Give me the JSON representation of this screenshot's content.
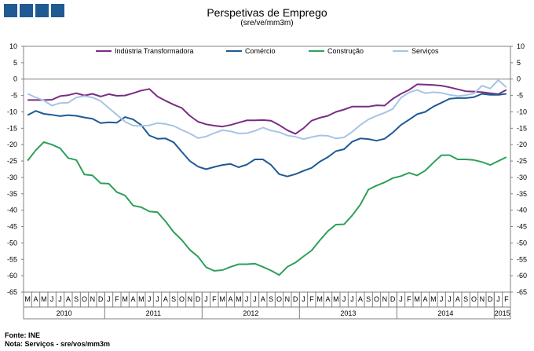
{
  "header": {
    "title": "Perspetivas de Emprego",
    "subtitle": "(sre/ve/mm3m)"
  },
  "footer": {
    "source": "Fonte: INE",
    "note": "Nota: Serviços - sre/vos/mm3m"
  },
  "chart_data": {
    "type": "line",
    "title": "Perspetivas de Emprego",
    "subtitle": "(sre/ve/mm3m)",
    "ylim": [
      -65,
      10
    ],
    "y_ticks": [
      10,
      5,
      0,
      -5,
      -10,
      -15,
      -20,
      -25,
      -30,
      -35,
      -40,
      -45,
      -50,
      -55,
      -60,
      -65
    ],
    "grid": false,
    "legend_position": "top",
    "month_labels": [
      "M",
      "A",
      "M",
      "J",
      "J",
      "A",
      "S",
      "O",
      "N",
      "D",
      "J",
      "F",
      "M",
      "A",
      "M",
      "J",
      "J",
      "A",
      "S",
      "O",
      "N",
      "D",
      "J",
      "F",
      "M",
      "A",
      "M",
      "J",
      "J",
      "A",
      "S",
      "O",
      "N",
      "D",
      "J",
      "F",
      "M",
      "A",
      "M",
      "J",
      "J",
      "A",
      "S",
      "O",
      "N",
      "D",
      "J",
      "F",
      "M",
      "A",
      "M",
      "J",
      "J",
      "A",
      "S",
      "O",
      "N",
      "D",
      "J",
      "F"
    ],
    "years": [
      {
        "label": "2010",
        "start": 0,
        "end": 10
      },
      {
        "label": "2011",
        "start": 10,
        "end": 22
      },
      {
        "label": "2012",
        "start": 22,
        "end": 34
      },
      {
        "label": "2013",
        "start": 34,
        "end": 46
      },
      {
        "label": "2014",
        "start": 46,
        "end": 58
      },
      {
        "label": "2015",
        "start": 58,
        "end": 60
      }
    ],
    "series": [
      {
        "name": "Indústria Transformadora",
        "color": "#7b2c83",
        "values": [
          -6.4,
          -6.4,
          -6.4,
          -6.3,
          -5.2,
          -4.9,
          -4.3,
          -5.0,
          -4.5,
          -5.3,
          -4.6,
          -5.1,
          -5.0,
          -4.3,
          -3.5,
          -3.0,
          -5.3,
          -6.6,
          -7.8,
          -8.8,
          -11.2,
          -13.0,
          -13.8,
          -14.2,
          -14.5,
          -14.0,
          -13.3,
          -12.6,
          -12.6,
          -12.5,
          -12.7,
          -14.0,
          -15.6,
          -16.7,
          -15.0,
          -12.7,
          -11.8,
          -11.2,
          -10.0,
          -9.3,
          -8.4,
          -8.4,
          -8.4,
          -8.0,
          -8.1,
          -6.0,
          -4.5,
          -3.3,
          -1.6,
          -1.7,
          -1.8,
          -2.0,
          -2.5,
          -3.1,
          -3.7,
          -3.8,
          -4.0,
          -4.3,
          -4.6,
          -3.3
        ]
      },
      {
        "name": "Comércio",
        "color": "#1f5a93",
        "values": [
          -11.0,
          -9.7,
          -10.6,
          -10.9,
          -11.3,
          -11.0,
          -11.2,
          -11.7,
          -12.1,
          -13.4,
          -13.2,
          -13.3,
          -11.6,
          -12.3,
          -14.0,
          -17.2,
          -18.2,
          -18.1,
          -19.3,
          -22.2,
          -25.0,
          -26.7,
          -27.5,
          -26.8,
          -26.2,
          -25.9,
          -26.9,
          -26.1,
          -24.5,
          -24.5,
          -26.2,
          -29.0,
          -29.7,
          -29.0,
          -28.0,
          -27.1,
          -25.2,
          -23.8,
          -22.0,
          -21.4,
          -19.1,
          -18.1,
          -18.3,
          -18.8,
          -18.2,
          -16.3,
          -14.0,
          -12.4,
          -10.7,
          -10.0,
          -8.4,
          -7.2,
          -6.0,
          -5.8,
          -5.8,
          -5.5,
          -4.5,
          -4.8,
          -4.8,
          -4.5
        ]
      },
      {
        "name": "Construção",
        "color": "#2ca05a",
        "values": [
          -24.9,
          -21.7,
          -19.2,
          -20.0,
          -21.1,
          -24.1,
          -24.7,
          -29.1,
          -29.4,
          -31.8,
          -31.9,
          -34.5,
          -35.5,
          -38.6,
          -39.1,
          -40.4,
          -40.6,
          -43.4,
          -46.7,
          -49.1,
          -52.1,
          -54.2,
          -57.4,
          -58.5,
          -58.3,
          -57.3,
          -56.5,
          -56.5,
          -56.3,
          -57.3,
          -58.4,
          -59.8,
          -57.3,
          -56.0,
          -54.1,
          -52.3,
          -49.2,
          -46.4,
          -44.4,
          -44.3,
          -41.6,
          -38.3,
          -33.7,
          -32.5,
          -31.5,
          -30.2,
          -29.6,
          -28.6,
          -29.4,
          -27.9,
          -25.5,
          -23.2,
          -23.2,
          -24.5,
          -24.5,
          -24.7,
          -25.3,
          -26.2,
          -25.0,
          -23.8
        ]
      },
      {
        "name": "Serviços",
        "color": "#a8c4e4",
        "values": [
          -4.5,
          -5.6,
          -6.5,
          -8.1,
          -7.3,
          -7.2,
          -5.6,
          -5.2,
          -5.6,
          -6.7,
          -8.8,
          -10.9,
          -13.0,
          -14.2,
          -14.3,
          -14.1,
          -13.4,
          -13.7,
          -14.3,
          -15.5,
          -16.6,
          -18.0,
          -17.5,
          -16.5,
          -15.6,
          -15.9,
          -16.6,
          -16.5,
          -15.8,
          -14.8,
          -15.7,
          -16.2,
          -17.2,
          -17.6,
          -18.3,
          -17.7,
          -17.2,
          -17.3,
          -18.1,
          -17.8,
          -16.1,
          -14.0,
          -12.3,
          -11.2,
          -10.3,
          -9.1,
          -5.7,
          -4.1,
          -3.3,
          -4.3,
          -4.0,
          -4.2,
          -4.8,
          -5.2,
          -4.9,
          -4.4,
          -2.0,
          -2.9,
          -0.3,
          -2.5
        ]
      }
    ]
  }
}
